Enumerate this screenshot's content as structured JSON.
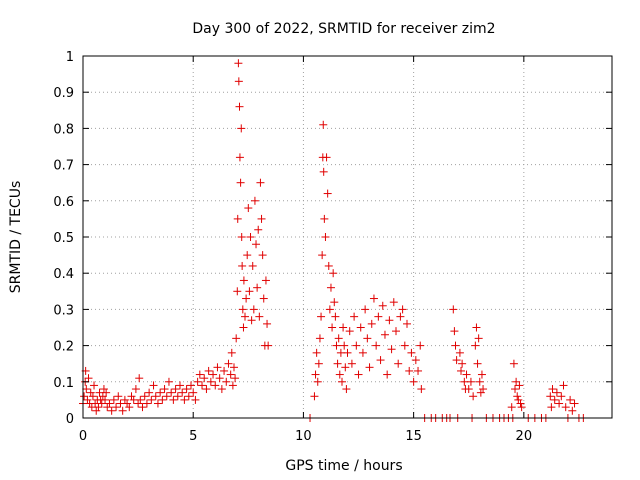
{
  "chart_data": {
    "type": "scatter",
    "title": "Day 300 of 2022, SRMTID for receiver zim2",
    "xlabel": "GPS time / hours",
    "ylabel": "SRMTID / TECUs",
    "xlim": [
      0,
      24
    ],
    "ylim": [
      0,
      1
    ],
    "x_ticks": [
      0,
      5,
      10,
      15,
      20
    ],
    "x_tick_labels": [
      "0",
      "5",
      "10",
      "15",
      "20"
    ],
    "y_ticks": [
      0,
      0.1,
      0.2,
      0.3,
      0.4,
      0.5,
      0.6,
      0.7,
      0.8,
      0.9,
      1
    ],
    "y_tick_labels": [
      "0",
      "0.1",
      "0.2",
      "0.3",
      "0.4",
      "0.5",
      "0.6",
      "0.7",
      "0.8",
      "0.9",
      "1"
    ],
    "grid": true,
    "marker": "plus",
    "series": [
      {
        "name": "SRMTID",
        "color": "#e00000",
        "points": [
          [
            0.0,
            0.04
          ],
          [
            0.05,
            0.06
          ],
          [
            0.1,
            0.1
          ],
          [
            0.12,
            0.13
          ],
          [
            0.15,
            0.08
          ],
          [
            0.2,
            0.05
          ],
          [
            0.25,
            0.11
          ],
          [
            0.3,
            0.04
          ],
          [
            0.35,
            0.07
          ],
          [
            0.4,
            0.03
          ],
          [
            0.45,
            0.06
          ],
          [
            0.5,
            0.09
          ],
          [
            0.55,
            0.04
          ],
          [
            0.6,
            0.02
          ],
          [
            0.65,
            0.05
          ],
          [
            0.7,
            0.03
          ],
          [
            0.75,
            0.07
          ],
          [
            0.8,
            0.05
          ],
          [
            0.85,
            0.04
          ],
          [
            0.9,
            0.06
          ],
          [
            0.95,
            0.08
          ],
          [
            1.0,
            0.05
          ],
          [
            1.05,
            0.07
          ],
          [
            1.1,
            0.03
          ],
          [
            1.2,
            0.04
          ],
          [
            1.3,
            0.02
          ],
          [
            1.4,
            0.05
          ],
          [
            1.5,
            0.03
          ],
          [
            1.6,
            0.06
          ],
          [
            1.7,
            0.04
          ],
          [
            1.8,
            0.02
          ],
          [
            1.9,
            0.05
          ],
          [
            2.0,
            0.04
          ],
          [
            2.1,
            0.03
          ],
          [
            2.2,
            0.06
          ],
          [
            2.3,
            0.05
          ],
          [
            2.4,
            0.08
          ],
          [
            2.5,
            0.04
          ],
          [
            2.55,
            0.11
          ],
          [
            2.6,
            0.05
          ],
          [
            2.7,
            0.03
          ],
          [
            2.8,
            0.06
          ],
          [
            2.9,
            0.04
          ],
          [
            3.0,
            0.07
          ],
          [
            3.1,
            0.05
          ],
          [
            3.2,
            0.09
          ],
          [
            3.3,
            0.06
          ],
          [
            3.4,
            0.04
          ],
          [
            3.5,
            0.07
          ],
          [
            3.6,
            0.05
          ],
          [
            3.7,
            0.08
          ],
          [
            3.8,
            0.06
          ],
          [
            3.9,
            0.1
          ],
          [
            4.0,
            0.07
          ],
          [
            4.1,
            0.05
          ],
          [
            4.2,
            0.08
          ],
          [
            4.3,
            0.06
          ],
          [
            4.4,
            0.09
          ],
          [
            4.5,
            0.07
          ],
          [
            4.6,
            0.05
          ],
          [
            4.7,
            0.08
          ],
          [
            4.8,
            0.06
          ],
          [
            4.9,
            0.09
          ],
          [
            5.0,
            0.07
          ],
          [
            5.1,
            0.05
          ],
          [
            5.2,
            0.1
          ],
          [
            5.3,
            0.12
          ],
          [
            5.4,
            0.09
          ],
          [
            5.5,
            0.11
          ],
          [
            5.6,
            0.08
          ],
          [
            5.7,
            0.13
          ],
          [
            5.8,
            0.1
          ],
          [
            5.9,
            0.12
          ],
          [
            6.0,
            0.09
          ],
          [
            6.1,
            0.14
          ],
          [
            6.2,
            0.11
          ],
          [
            6.3,
            0.08
          ],
          [
            6.4,
            0.13
          ],
          [
            6.5,
            0.1
          ],
          [
            6.6,
            0.15
          ],
          [
            6.7,
            0.12
          ],
          [
            6.75,
            0.18
          ],
          [
            6.8,
            0.09
          ],
          [
            6.85,
            0.14
          ],
          [
            6.9,
            0.11
          ],
          [
            6.95,
            0.22
          ],
          [
            7.0,
            0.35
          ],
          [
            7.02,
            0.55
          ],
          [
            7.05,
            0.98
          ],
          [
            7.07,
            0.93
          ],
          [
            7.1,
            0.86
          ],
          [
            7.12,
            0.72
          ],
          [
            7.15,
            0.65
          ],
          [
            7.18,
            0.8
          ],
          [
            7.2,
            0.5
          ],
          [
            7.22,
            0.42
          ],
          [
            7.25,
            0.3
          ],
          [
            7.28,
            0.25
          ],
          [
            7.3,
            0.38
          ],
          [
            7.35,
            0.28
          ],
          [
            7.4,
            0.33
          ],
          [
            7.45,
            0.45
          ],
          [
            7.5,
            0.58
          ],
          [
            7.55,
            0.35
          ],
          [
            7.6,
            0.5
          ],
          [
            7.65,
            0.27
          ],
          [
            7.7,
            0.42
          ],
          [
            7.75,
            0.3
          ],
          [
            7.8,
            0.6
          ],
          [
            7.85,
            0.48
          ],
          [
            7.9,
            0.36
          ],
          [
            7.95,
            0.52
          ],
          [
            8.0,
            0.28
          ],
          [
            8.05,
            0.65
          ],
          [
            8.1,
            0.55
          ],
          [
            8.15,
            0.45
          ],
          [
            8.2,
            0.33
          ],
          [
            8.25,
            0.2
          ],
          [
            8.3,
            0.38
          ],
          [
            8.35,
            0.26
          ],
          [
            8.4,
            0.2
          ],
          [
            10.3,
            0.0
          ],
          [
            10.5,
            0.06
          ],
          [
            10.55,
            0.12
          ],
          [
            10.6,
            0.18
          ],
          [
            10.65,
            0.1
          ],
          [
            10.7,
            0.15
          ],
          [
            10.75,
            0.22
          ],
          [
            10.8,
            0.28
          ],
          [
            10.85,
            0.45
          ],
          [
            10.88,
            0.72
          ],
          [
            10.9,
            0.81
          ],
          [
            10.92,
            0.68
          ],
          [
            10.95,
            0.55
          ],
          [
            11.0,
            0.5
          ],
          [
            11.05,
            0.72
          ],
          [
            11.1,
            0.62
          ],
          [
            11.15,
            0.42
          ],
          [
            11.2,
            0.3
          ],
          [
            11.25,
            0.36
          ],
          [
            11.3,
            0.25
          ],
          [
            11.35,
            0.4
          ],
          [
            11.4,
            0.32
          ],
          [
            11.45,
            0.28
          ],
          [
            11.5,
            0.2
          ],
          [
            11.55,
            0.15
          ],
          [
            11.6,
            0.22
          ],
          [
            11.65,
            0.12
          ],
          [
            11.7,
            0.18
          ],
          [
            11.75,
            0.1
          ],
          [
            11.8,
            0.25
          ],
          [
            11.85,
            0.2
          ],
          [
            11.9,
            0.14
          ],
          [
            11.95,
            0.08
          ],
          [
            12.0,
            0.18
          ],
          [
            12.1,
            0.24
          ],
          [
            12.2,
            0.15
          ],
          [
            12.3,
            0.28
          ],
          [
            12.4,
            0.2
          ],
          [
            12.5,
            0.12
          ],
          [
            12.6,
            0.25
          ],
          [
            12.7,
            0.18
          ],
          [
            12.8,
            0.3
          ],
          [
            12.9,
            0.22
          ],
          [
            13.0,
            0.14
          ],
          [
            13.1,
            0.26
          ],
          [
            13.2,
            0.33
          ],
          [
            13.3,
            0.2
          ],
          [
            13.4,
            0.28
          ],
          [
            13.5,
            0.16
          ],
          [
            13.6,
            0.31
          ],
          [
            13.7,
            0.23
          ],
          [
            13.8,
            0.12
          ],
          [
            13.9,
            0.27
          ],
          [
            14.0,
            0.19
          ],
          [
            14.1,
            0.32
          ],
          [
            14.2,
            0.24
          ],
          [
            14.3,
            0.15
          ],
          [
            14.4,
            0.28
          ],
          [
            14.5,
            0.3
          ],
          [
            14.6,
            0.2
          ],
          [
            14.7,
            0.26
          ],
          [
            14.8,
            0.13
          ],
          [
            14.9,
            0.18
          ],
          [
            15.0,
            0.1
          ],
          [
            15.1,
            0.16
          ],
          [
            15.2,
            0.13
          ],
          [
            15.3,
            0.2
          ],
          [
            15.35,
            0.08
          ],
          [
            15.5,
            0.0
          ],
          [
            15.8,
            0.0
          ],
          [
            16.0,
            0.0
          ],
          [
            16.3,
            0.0
          ],
          [
            16.5,
            0.0
          ],
          [
            16.65,
            0.0
          ],
          [
            16.8,
            0.3
          ],
          [
            16.85,
            0.24
          ],
          [
            16.9,
            0.2
          ],
          [
            16.95,
            0.16
          ],
          [
            17.0,
            0.0
          ],
          [
            17.1,
            0.18
          ],
          [
            17.15,
            0.13
          ],
          [
            17.2,
            0.15
          ],
          [
            17.3,
            0.1
          ],
          [
            17.35,
            0.08
          ],
          [
            17.4,
            0.12
          ],
          [
            17.5,
            0.08
          ],
          [
            17.6,
            0.1
          ],
          [
            17.65,
            0.0
          ],
          [
            17.7,
            0.06
          ],
          [
            17.8,
            0.2
          ],
          [
            17.85,
            0.25
          ],
          [
            17.9,
            0.15
          ],
          [
            17.95,
            0.22
          ],
          [
            18.0,
            0.1
          ],
          [
            18.05,
            0.07
          ],
          [
            18.1,
            0.12
          ],
          [
            18.15,
            0.08
          ],
          [
            18.3,
            0.0
          ],
          [
            18.6,
            0.0
          ],
          [
            18.9,
            0.0
          ],
          [
            19.1,
            0.0
          ],
          [
            19.3,
            0.0
          ],
          [
            19.45,
            0.03
          ],
          [
            19.5,
            0.0
          ],
          [
            19.55,
            0.15
          ],
          [
            19.6,
            0.08
          ],
          [
            19.65,
            0.1
          ],
          [
            19.7,
            0.06
          ],
          [
            19.75,
            0.05
          ],
          [
            19.8,
            0.09
          ],
          [
            19.85,
            0.04
          ],
          [
            19.9,
            0.03
          ],
          [
            20.2,
            0.0
          ],
          [
            20.5,
            0.0
          ],
          [
            20.8,
            0.0
          ],
          [
            21.0,
            0.0
          ],
          [
            21.2,
            0.06
          ],
          [
            21.25,
            0.03
          ],
          [
            21.3,
            0.08
          ],
          [
            21.4,
            0.05
          ],
          [
            21.5,
            0.07
          ],
          [
            21.6,
            0.04
          ],
          [
            21.7,
            0.06
          ],
          [
            21.8,
            0.09
          ],
          [
            21.9,
            0.03
          ],
          [
            22.0,
            0.0
          ],
          [
            22.1,
            0.05
          ],
          [
            22.2,
            0.02
          ],
          [
            22.3,
            0.04
          ],
          [
            22.5,
            0.0
          ],
          [
            22.7,
            0.0
          ]
        ]
      }
    ]
  }
}
